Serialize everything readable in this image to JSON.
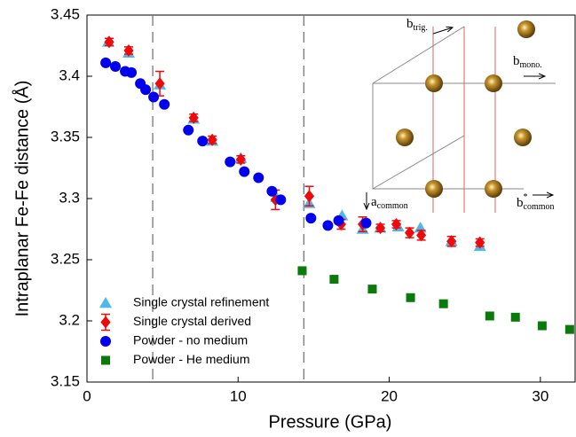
{
  "chart_data": {
    "type": "scatter",
    "xlabel": "Pressure (GPa)",
    "ylabel": "Intraplanar Fe-Fe distance (Å)",
    "xlim": [
      0,
      32.3
    ],
    "ylim": [
      3.15,
      3.45
    ],
    "xticks": [
      0,
      10,
      20,
      30
    ],
    "yticks": [
      3.15,
      3.2,
      3.25,
      3.3,
      3.35,
      3.4,
      3.45
    ],
    "vlines": [
      4.35,
      14.35
    ],
    "legend": "lower left",
    "series": [
      {
        "name": "Single crystal refinement",
        "color": "#4fb8ea",
        "marker": "triangle",
        "x": [
          1.41,
          2.76,
          4.82,
          7.06,
          8.29,
          10.18,
          12.53,
          14.71,
          16.88,
          18.24,
          19.41,
          20.59,
          22.06,
          24.12,
          26.0
        ],
        "values": [
          3.428,
          3.419,
          3.393,
          3.365,
          3.347,
          3.333,
          3.301,
          3.296,
          3.286,
          3.275,
          3.276,
          3.277,
          3.276,
          3.265,
          3.261
        ]
      },
      {
        "name": "Single crystal derived",
        "color": "#ee0a0a",
        "marker": "diamond",
        "x": [
          1.47,
          2.76,
          4.82,
          7.06,
          8.29,
          10.18,
          12.47,
          14.71,
          16.82,
          18.24,
          19.41,
          20.47,
          21.35,
          22.12,
          24.12,
          26.0
        ],
        "values": [
          3.428,
          3.421,
          3.394,
          3.366,
          3.348,
          3.332,
          3.299,
          3.302,
          3.279,
          3.279,
          3.276,
          3.279,
          3.272,
          3.27,
          3.265,
          3.264
        ],
        "errors": [
          0.003,
          0.003,
          0.01,
          0.003,
          0.003,
          0.003,
          0.008,
          0.008,
          0.004,
          0.006,
          0.003,
          0.003,
          0.004,
          0.004,
          0.004,
          0.003
        ]
      },
      {
        "name": "Powder - no medium",
        "color": "#0000ee",
        "marker": "circle",
        "x": [
          1.24,
          1.88,
          2.53,
          2.94,
          3.53,
          3.88,
          4.41,
          5.12,
          6.71,
          7.65,
          9.47,
          10.41,
          11.35,
          12.24,
          12.82,
          14.82,
          15.94,
          16.65,
          18.47
        ],
        "values": [
          3.411,
          3.408,
          3.404,
          3.403,
          3.394,
          3.389,
          3.383,
          3.377,
          3.356,
          3.347,
          3.33,
          3.322,
          3.317,
          3.306,
          3.299,
          3.284,
          3.278,
          3.282,
          3.28
        ]
      },
      {
        "name": "Powder - He medium",
        "color": "#0a7a0a",
        "marker": "square",
        "x": [
          14.24,
          16.35,
          18.88,
          21.41,
          23.59,
          26.65,
          28.35,
          30.12,
          31.94
        ],
        "values": [
          3.241,
          3.234,
          3.226,
          3.219,
          3.214,
          3.204,
          3.203,
          3.196,
          3.193
        ]
      }
    ],
    "inset_labels": [
      {
        "base": "b",
        "sub": "trig."
      },
      {
        "base": "b",
        "sub": "mono."
      },
      {
        "base": "a",
        "sub": "common"
      },
      {
        "base": "b",
        "sup": "*",
        "sub": "common"
      }
    ]
  }
}
